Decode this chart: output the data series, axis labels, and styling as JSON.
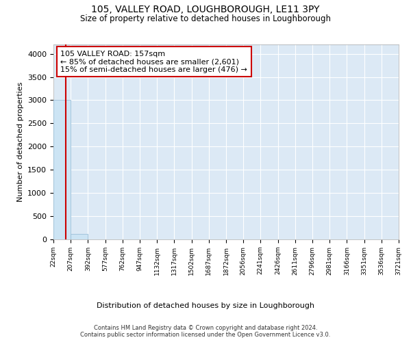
{
  "title1": "105, VALLEY ROAD, LOUGHBOROUGH, LE11 3PY",
  "title2": "Size of property relative to detached houses in Loughborough",
  "xlabel": "Distribution of detached houses by size in Loughborough",
  "ylabel": "Number of detached properties",
  "bin_edges": [
    22,
    207,
    392,
    577,
    762,
    947,
    1132,
    1317,
    1502,
    1687,
    1872,
    2056,
    2241,
    2426,
    2611,
    2796,
    2981,
    3166,
    3351,
    3536,
    3721
  ],
  "bin_labels": [
    "22sqm",
    "207sqm",
    "392sqm",
    "577sqm",
    "762sqm",
    "947sqm",
    "1132sqm",
    "1317sqm",
    "1502sqm",
    "1687sqm",
    "1872sqm",
    "2056sqm",
    "2241sqm",
    "2426sqm",
    "2611sqm",
    "2796sqm",
    "2981sqm",
    "3166sqm",
    "3351sqm",
    "3536sqm",
    "3721sqm"
  ],
  "bar_heights": [
    3000,
    120,
    0,
    0,
    0,
    0,
    0,
    0,
    0,
    0,
    0,
    0,
    0,
    0,
    0,
    0,
    0,
    0,
    0,
    0
  ],
  "bar_color": "#cce4f4",
  "bar_edge_color": "#9bbfd8",
  "property_size": 157,
  "annotation_line1": "105 VALLEY ROAD: 157sqm",
  "annotation_line2": "← 85% of detached houses are smaller (2,601)",
  "annotation_line3": "15% of semi-detached houses are larger (476) →",
  "vline_color": "#cc0000",
  "annotation_box_facecolor": "#ffffff",
  "annotation_box_edgecolor": "#cc0000",
  "ylim": [
    0,
    4200
  ],
  "yticks": [
    0,
    500,
    1000,
    1500,
    2000,
    2500,
    3000,
    3500,
    4000
  ],
  "background_color": "#dce9f5",
  "footer_line1": "Contains HM Land Registry data © Crown copyright and database right 2024.",
  "footer_line2": "Contains public sector information licensed under the Open Government Licence v3.0."
}
